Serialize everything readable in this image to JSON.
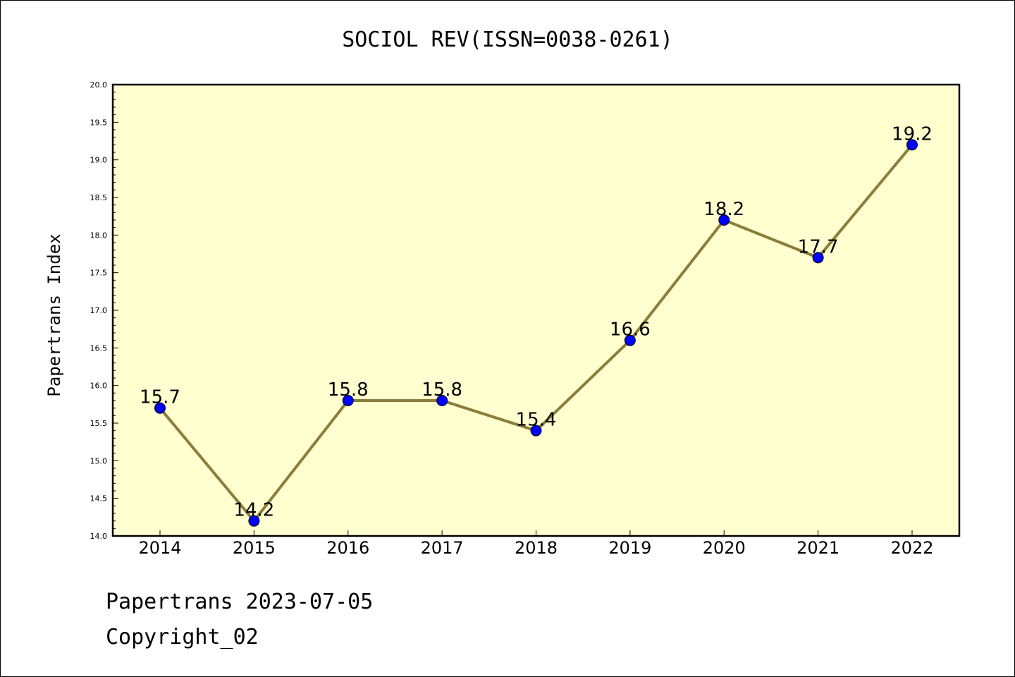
{
  "chart_data": {
    "type": "line",
    "title": "SOCIOL REV(ISSN=0038-0261)",
    "ylabel": "Papertrans Index",
    "xlabel": "",
    "categories": [
      "2014",
      "2015",
      "2016",
      "2017",
      "2018",
      "2019",
      "2020",
      "2021",
      "2022"
    ],
    "values": [
      15.7,
      14.2,
      15.8,
      15.8,
      15.4,
      16.6,
      18.2,
      17.7,
      19.2
    ],
    "data_labels": [
      "15.7",
      "14.2",
      "15.8",
      "15.8",
      "15.4",
      "16.6",
      "18.2",
      "17.7",
      "19.2"
    ],
    "ylim": [
      14.0,
      20.0
    ],
    "yticks": [
      "14.0",
      "14.5",
      "15.0",
      "15.5",
      "16.0",
      "16.5",
      "17.0",
      "17.5",
      "18.0",
      "18.5",
      "19.0",
      "19.5",
      "20.0"
    ],
    "grid": false,
    "colors": {
      "plot_background": "#ffffd0",
      "line": "#8b7d3a",
      "marker": "#0000ff"
    }
  },
  "footer": {
    "line1": "Papertrans 2023-07-05",
    "line2": "Copyright_02"
  }
}
